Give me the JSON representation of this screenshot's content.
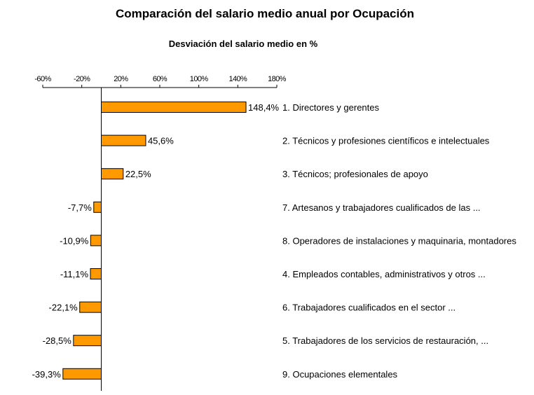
{
  "chart_data": {
    "type": "bar",
    "orientation": "horizontal",
    "title": "Comparación del salario medio anual por Ocupación",
    "subtitle": "Desviación del salario medio en %",
    "xlim": [
      -60,
      180
    ],
    "ticks": [
      -60,
      -20,
      20,
      60,
      100,
      140,
      180
    ],
    "tick_labels": [
      "-60%",
      "-20%",
      "20%",
      "60%",
      "100%",
      "140%",
      "180%"
    ],
    "categories": [
      "1. Directores y gerentes",
      "2. Técnicos y profesiones científicos e intelectuales",
      "3. Técnicos; profesionales de apoyo",
      "7. Artesanos y trabajadores cualificados de las ...",
      "8. Operadores de instalaciones y maquinaria, montadores",
      "4. Empleados contables, administrativos y otros ...",
      "6. Trabajadores cualificados en el sector ...",
      "5. Trabajadores de los servicios de restauración, ...",
      "9. Ocupaciones elementales"
    ],
    "values": [
      148.4,
      45.6,
      22.5,
      -7.7,
      -10.9,
      -11.1,
      -22.1,
      -28.5,
      -39.3
    ],
    "value_labels": [
      "148,4%",
      "45,6%",
      "22,5%",
      "-7,7%",
      "-10,9%",
      "-11,1%",
      "-22,1%",
      "-28,5%",
      "-39,3%"
    ],
    "bar_color": "#FF9900",
    "bar_edge_color": "#000000",
    "grid": false,
    "legend": "none"
  }
}
